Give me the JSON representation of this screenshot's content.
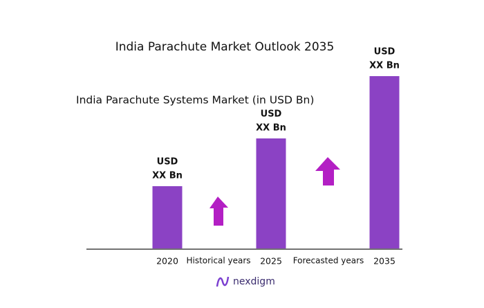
{
  "chart_data": {
    "type": "bar",
    "title": "India Parachute Market Outlook 2035",
    "subtitle": "India Parachute Systems Market (in USD Bn)",
    "categories": [
      "2020",
      "2025",
      "2035"
    ],
    "values": [
      90,
      159,
      249
    ],
    "value_labels": [
      [
        "USD",
        "XX Bn"
      ],
      [
        "USD",
        "XX Bn"
      ],
      [
        "USD",
        "XX Bn"
      ]
    ],
    "color": "#8b42c4",
    "annotations": [
      "Historical years",
      "Forecasted years"
    ],
    "brand": "nexdigm"
  }
}
